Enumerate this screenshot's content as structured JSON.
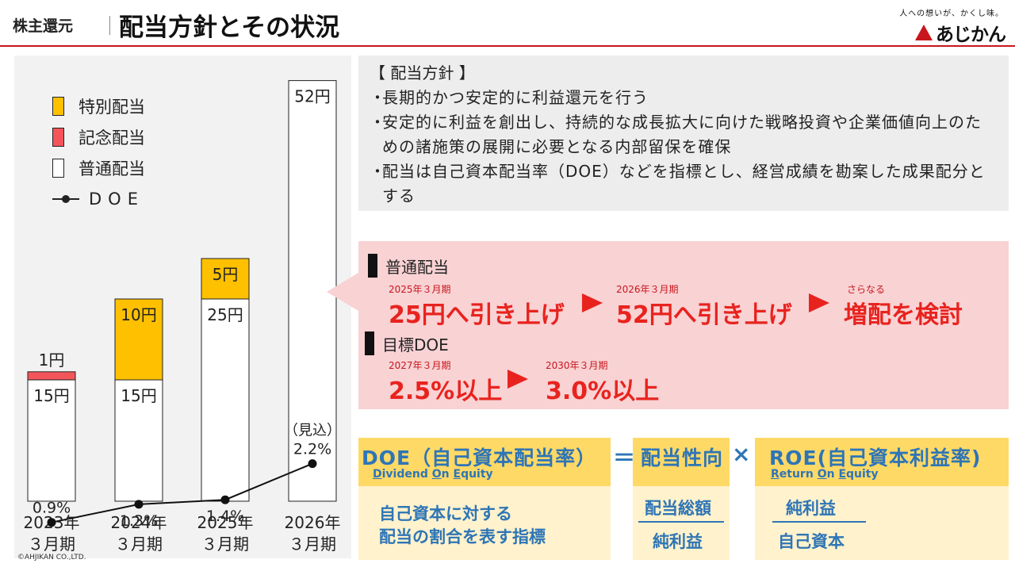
{
  "header": {
    "section": "株主還元",
    "title": "配当方針とその状況",
    "logo_tagline": "人への想いが、かくし味。",
    "logo_word": "あじかん"
  },
  "copyright": "©AHJIKAN CO.,LTD.",
  "legend": {
    "special": "特別配当",
    "commemorative": "記念配当",
    "ordinary": "普通配当",
    "doe": "DOE"
  },
  "colors": {
    "special": "#ffc000",
    "commemorative": "#f4555a",
    "ordinary": "#ffffff",
    "accent_red": "#e8231e",
    "formula_blue": "#2e75b6"
  },
  "chart_data": {
    "type": "bar",
    "stacked": true,
    "categories": [
      {
        "year": "2023年",
        "month": "３月期"
      },
      {
        "year": "2024年",
        "month": "３月期"
      },
      {
        "year": "2025年",
        "month": "３月期"
      },
      {
        "year": "2026年",
        "month": "３月期"
      }
    ],
    "series": [
      {
        "name": "普通配当",
        "values": [
          15,
          15,
          25,
          52
        ],
        "labels": [
          "15円",
          "15円",
          "25円",
          "52円"
        ]
      },
      {
        "name": "記念配当",
        "values": [
          1,
          0,
          0,
          0
        ],
        "labels": [
          "1円",
          "",
          "",
          ""
        ]
      },
      {
        "name": "特別配当",
        "values": [
          0,
          10,
          5,
          0
        ],
        "labels": [
          "",
          "10円",
          "5円",
          ""
        ]
      }
    ],
    "doe": {
      "name": "DOE",
      "values": [
        0.9,
        1.3,
        1.4,
        2.2
      ],
      "labels": [
        "0.9%",
        "1.3%",
        "1.4%",
        "2.2%"
      ],
      "note": "（見込）"
    }
  },
  "policy": {
    "title": "【 配当方針 】",
    "items": [
      "長期的かつ安定的に利益還元を行う",
      "安定的に利益を創出し、持続的な成長拡大に向けた戦略投資や企業価値向上のための諸施策の展開に必要となる内部留保を確保",
      "配当は自己資本配当率（DOE）などを指標とし、経営成績を勘案した成果配分とする"
    ]
  },
  "targets": {
    "ordinary_title": "普通配当",
    "ord_date1": "2025年３月期",
    "ord_val1": "25円へ引き上げ",
    "ord_date2": "2026年３月期",
    "ord_val2": "52円へ引き上げ",
    "ord_note3": "さらなる",
    "ord_val3": "増配を検討",
    "doe_title": "目標DOE",
    "doe_date1": "2027年３月期",
    "doe_val1": "2.5%以上",
    "doe_date2": "2030年３月期",
    "doe_val2": "3.0%以上"
  },
  "formula": {
    "doe_main": "DOE（自己資本配当率）",
    "doe_en": "Dividend On Equity",
    "eq": "＝",
    "payout_main": "配当性向",
    "times": "×",
    "roe_main": "ROE(自己資本利益率)",
    "roe_en": "Return On Equity",
    "doe_desc1": "自己資本に対する",
    "doe_desc2": "配当の割合を表す指標",
    "payout_num": "配当総額",
    "payout_den": "純利益",
    "roe_num": "純利益",
    "roe_den": "自己資本"
  }
}
